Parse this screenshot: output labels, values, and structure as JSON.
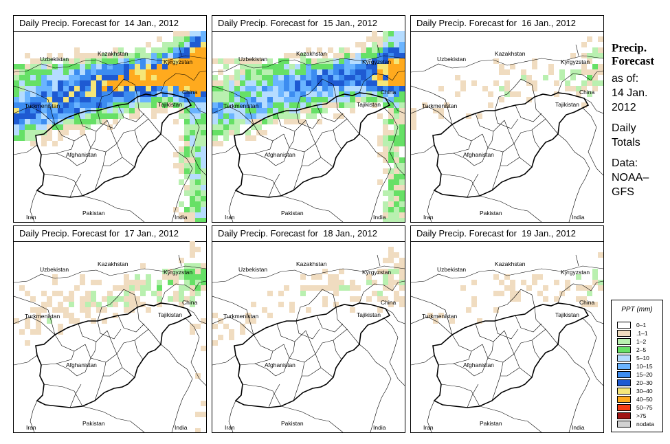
{
  "panels": [
    {
      "title": "Daily Precip. Forecast for  14 Jan., 2012",
      "intensity": 1.0
    },
    {
      "title": "Daily Precip. Forecast for  15 Jan., 2012",
      "intensity": 0.75
    },
    {
      "title": "Daily Precip. Forecast for  16 Jan., 2012",
      "intensity": 0.2
    },
    {
      "title": "Daily Precip. Forecast for  17 Jan., 2012",
      "intensity": 0.25
    },
    {
      "title": "Daily Precip. Forecast for  18 Jan., 2012",
      "intensity": 0.18
    },
    {
      "title": "Daily Precip. Forecast for  19 Jan., 2012",
      "intensity": 0.15
    }
  ],
  "map_labels": {
    "uzbekistan": "Uzbekistan",
    "kazakhstan": "Kazakhstan",
    "kyrgyzstan": "Kyrgyzstan",
    "china": "China",
    "turkmenistan": "Turkmenistan",
    "tajikistan": "Tajikistan",
    "afghanistan": "Afghanistan",
    "pakistan": "Pakistan",
    "iran": "Iran",
    "india": "India"
  },
  "side": {
    "title_line1": "Precip.",
    "title_line2": "Forecast",
    "asof_label": "as of:",
    "asof_date1": "14 Jan.",
    "asof_date2": "2012",
    "totals1": "Daily",
    "totals2": "Totals",
    "data1": "Data:",
    "data2": "NOAA–",
    "data3": "GFS"
  },
  "legend": {
    "title": "PPT (mm)",
    "items": [
      {
        "label": "0–1",
        "color": "#ffffff"
      },
      {
        "label": ".1–1",
        "color": "#f0dcc0"
      },
      {
        "label": "1–2",
        "color": "#b9f0b0"
      },
      {
        "label": "2–5",
        "color": "#66e066"
      },
      {
        "label": "5–10",
        "color": "#b5dcff"
      },
      {
        "label": "10–15",
        "color": "#6ab4ff"
      },
      {
        "label": "15–20",
        "color": "#3c8cf0"
      },
      {
        "label": "20–30",
        "color": "#1e5ad2"
      },
      {
        "label": "30–40",
        "color": "#f5e678"
      },
      {
        "label": "40–50",
        "color": "#ffaa1e"
      },
      {
        "label": "50–75",
        "color": "#f53c14"
      },
      {
        "label": ">75",
        "color": "#a01414"
      },
      {
        "label": "nodata",
        "color": "#d2d2d2"
      }
    ]
  }
}
